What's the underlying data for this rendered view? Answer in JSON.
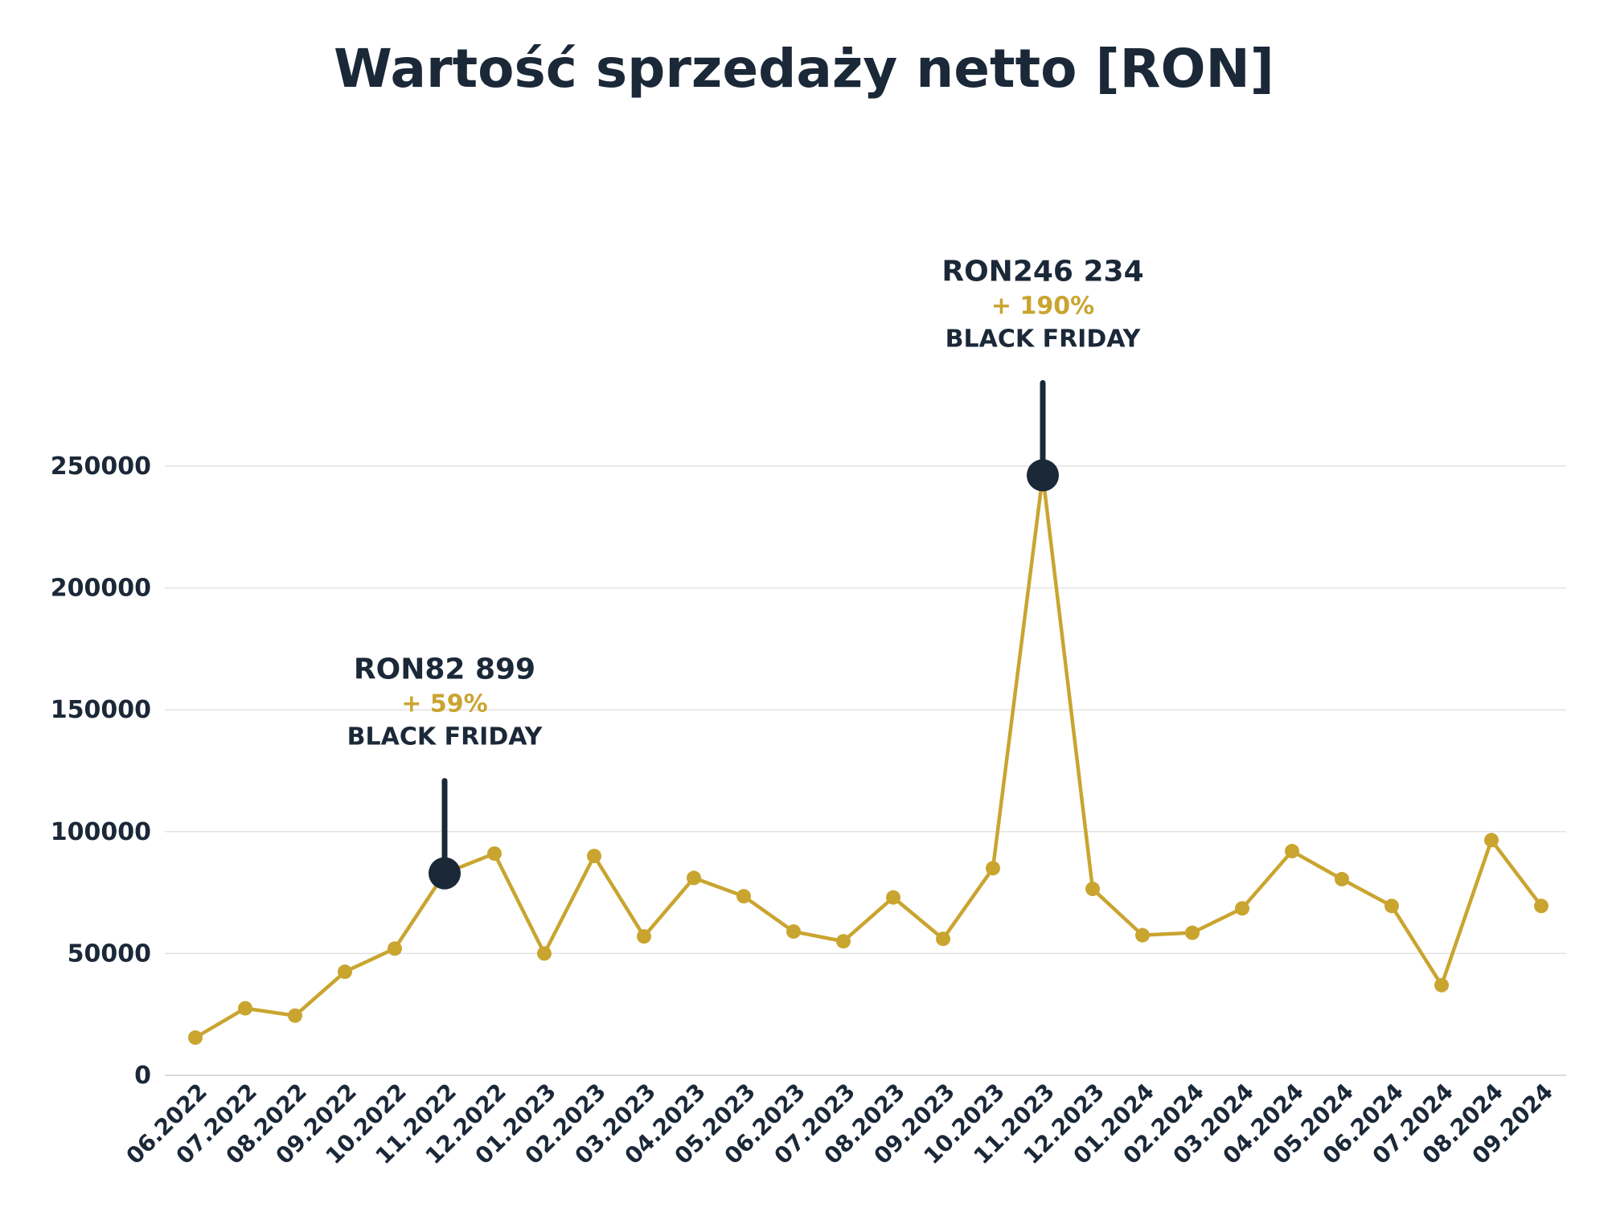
{
  "colors": {
    "line": "#c9a530",
    "dark": "#1b2838",
    "grid": "#e3e3e3"
  },
  "chart_data": {
    "type": "line",
    "title": "Wartość sprzedaży netto [RON]",
    "xlabel": "",
    "ylabel": "",
    "ylim": [
      0,
      250000
    ],
    "yticks": [
      0,
      50000,
      100000,
      150000,
      200000,
      250000
    ],
    "grid": true,
    "categories": [
      "06.2022",
      "07.2022",
      "08.2022",
      "09.2022",
      "10.2022",
      "11.2022",
      "12.2022",
      "01.2023",
      "02.2023",
      "03.2023",
      "04.2023",
      "05.2023",
      "06.2023",
      "07.2023",
      "08.2023",
      "09.2023",
      "10.2023",
      "11.2023",
      "12.2023",
      "01.2024",
      "02.2024",
      "03.2024",
      "04.2024",
      "05.2024",
      "06.2024",
      "07.2024",
      "08.2024",
      "09.2024"
    ],
    "series": [
      {
        "values": [
          15500,
          27500,
          24500,
          42500,
          52000,
          82899,
          91000,
          50000,
          90000,
          57000,
          81000,
          73500,
          59000,
          55000,
          73000,
          56000,
          85000,
          246234,
          76500,
          57500,
          58500,
          68500,
          92000,
          80500,
          69500,
          37000,
          96500,
          69500
        ]
      }
    ],
    "annotations": [
      {
        "category": "11.2022",
        "value_label": "RON82 899",
        "pct_label": "+ 59%",
        "label": "BLACK FRIDAY"
      },
      {
        "category": "11.2023",
        "value_label": "RON246 234",
        "pct_label": "+ 190%",
        "label": "BLACK FRIDAY"
      }
    ]
  }
}
